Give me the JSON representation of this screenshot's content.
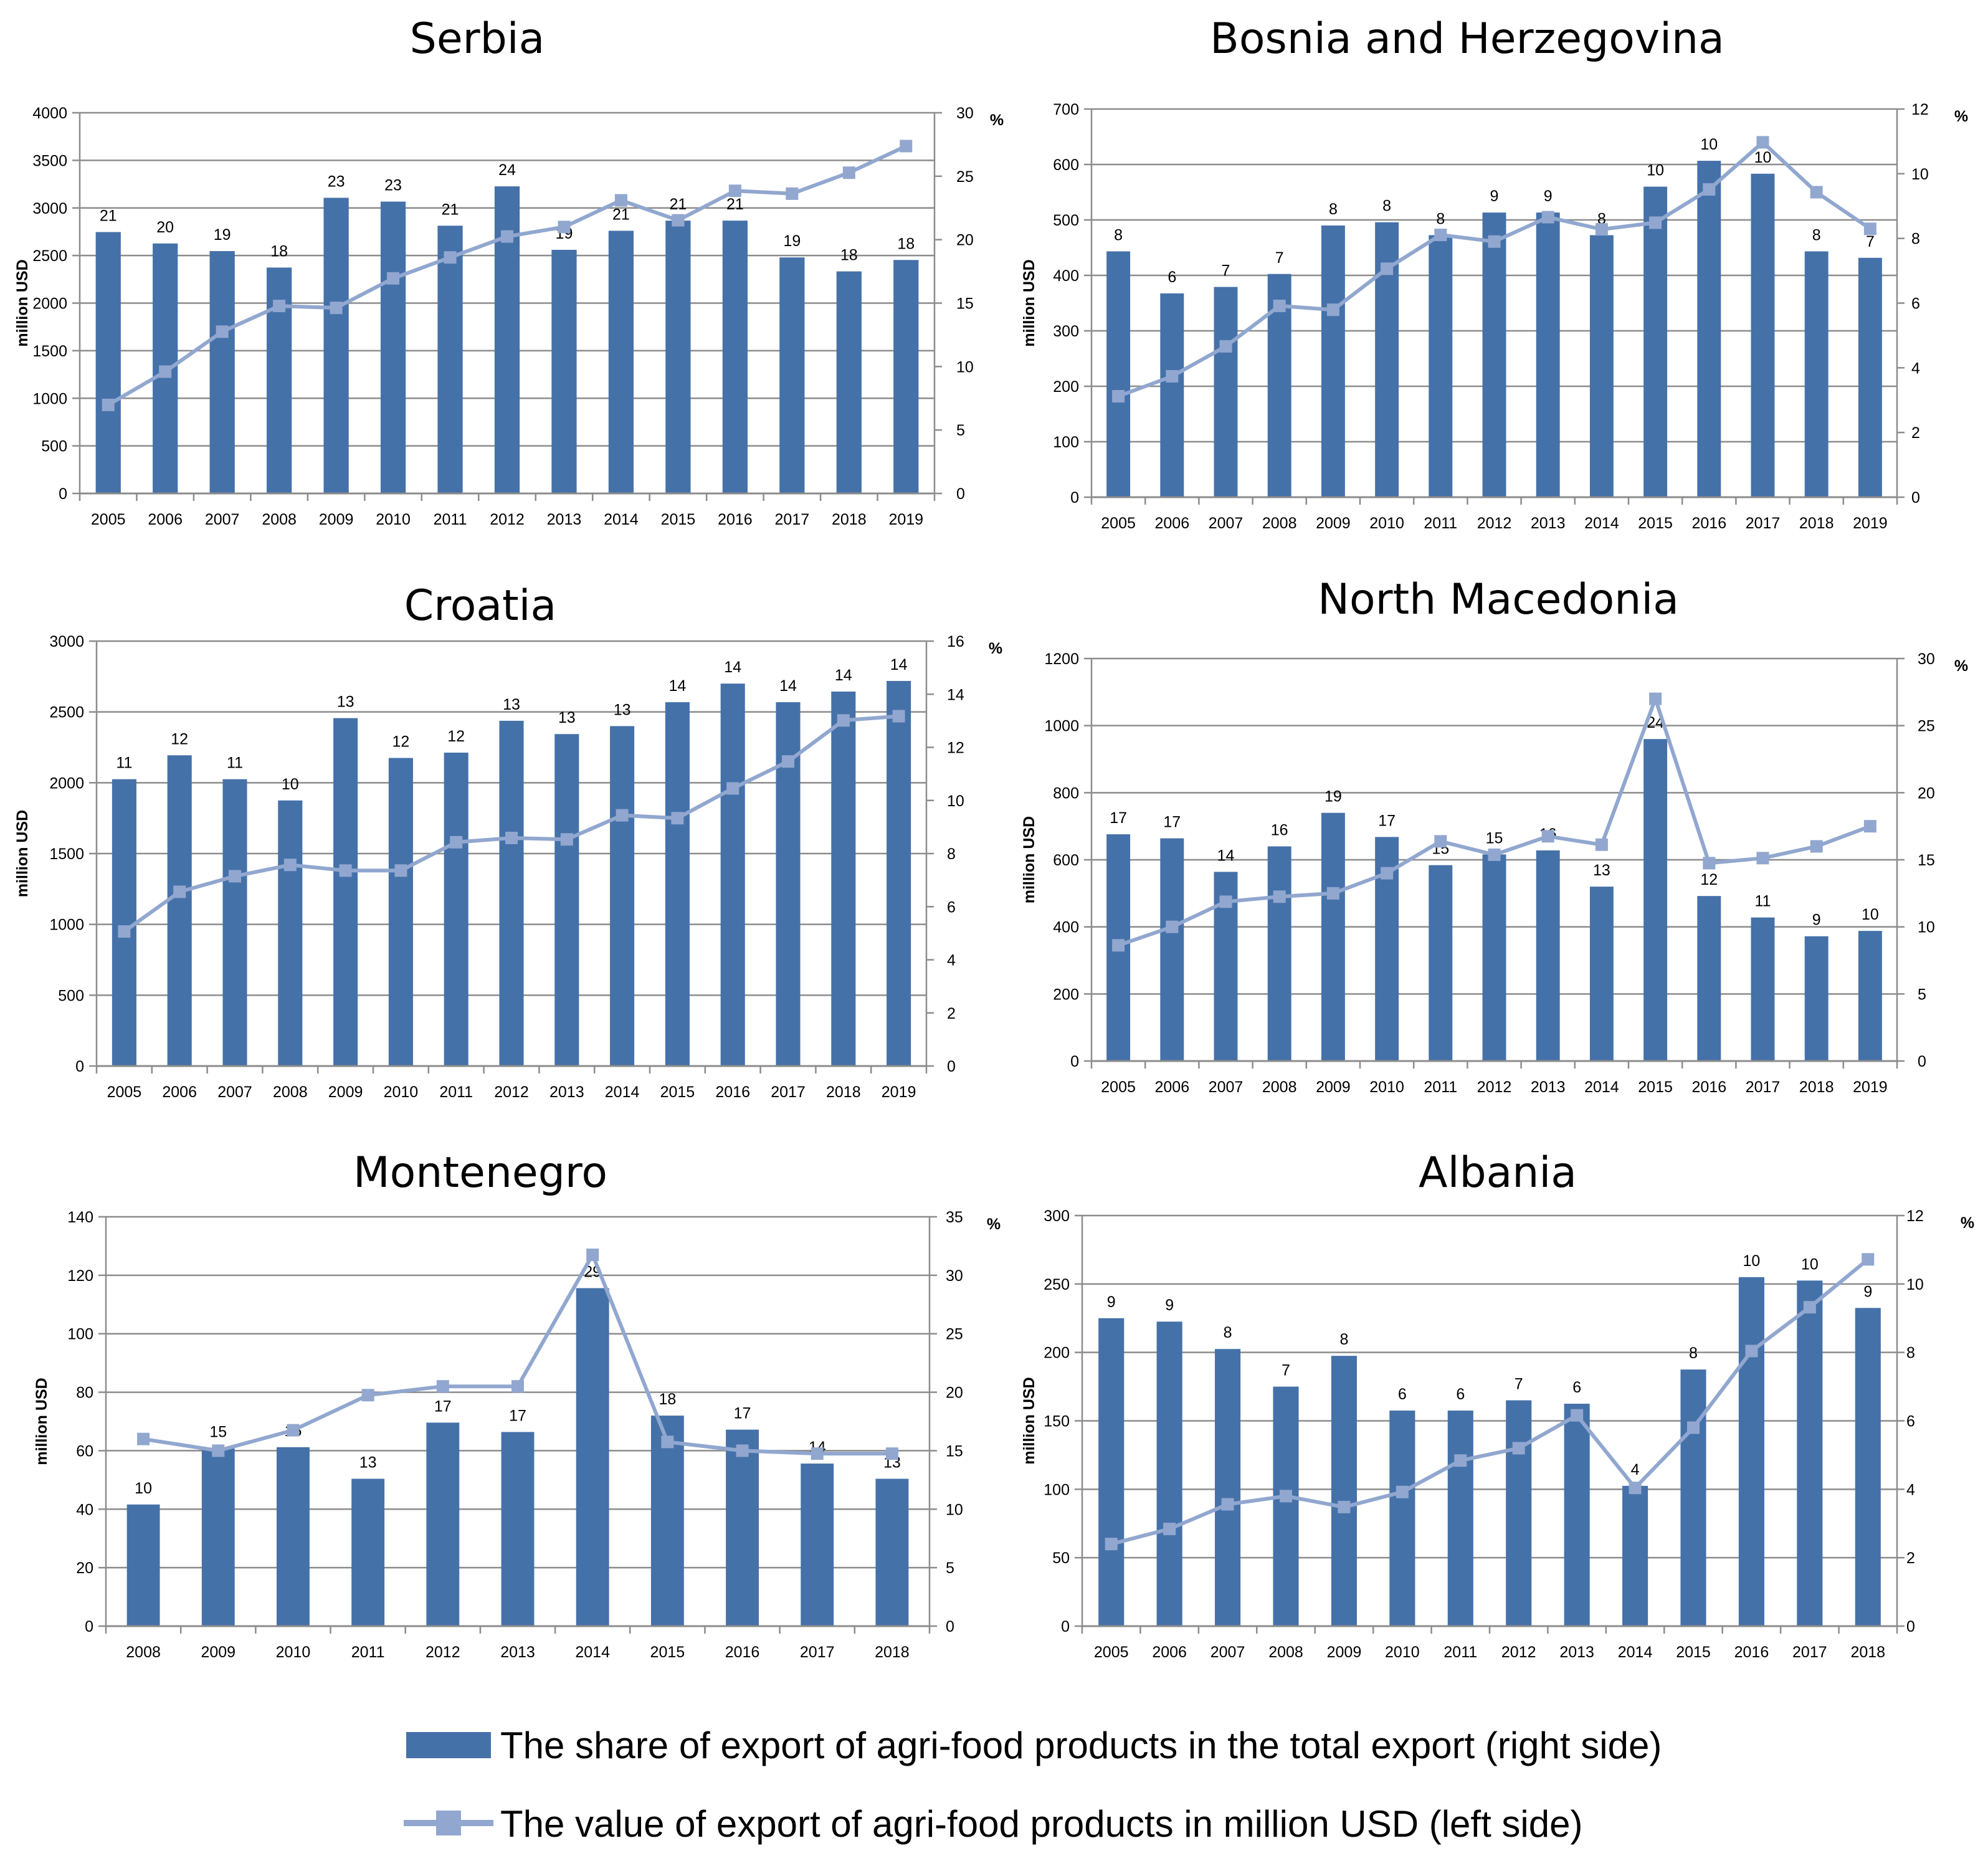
{
  "colors": {
    "bar": "#4571a9",
    "line": "#91a7cf",
    "grid": "#8c8c8c",
    "axis": "#8c8c8c"
  },
  "legend": {
    "bar_label": "The share of export of agri-food products in the total export (right side)",
    "line_label": "The value of export of agri-food products in million USD (left side)"
  },
  "chart_data": [
    {
      "type": "bar",
      "title": "Serbia",
      "ylabel": "million USD",
      "y2label": "%",
      "categories": [
        "2005",
        "2006",
        "2007",
        "2008",
        "2009",
        "2010",
        "2011",
        "2012",
        "2013",
        "2014",
        "2015",
        "2016",
        "2017",
        "2018",
        "2019"
      ],
      "ylim": [
        0,
        4000
      ],
      "yticks": [
        0,
        500,
        1000,
        1500,
        2000,
        2500,
        3000,
        3500,
        4000
      ],
      "y2lim": [
        0,
        30
      ],
      "y2ticks": [
        0,
        5,
        10,
        15,
        20,
        25,
        30
      ],
      "series": [
        {
          "name": "The share of export of agri-food products in the total export (right side)",
          "type": "bar",
          "axis": "right",
          "values": [
            20.6,
            19.7,
            19.1,
            17.8,
            23.3,
            23.0,
            21.1,
            24.2,
            19.2,
            20.7,
            21.5,
            21.5,
            18.6,
            17.5,
            18.4
          ],
          "labels": [
            "21",
            "20",
            "19",
            "18",
            "23",
            "23",
            "21",
            "24",
            "19",
            "21",
            "21",
            "21",
            "19",
            "18",
            "18"
          ]
        },
        {
          "name": "The value of export of agri-food products in million USD (left side)",
          "type": "line",
          "axis": "left",
          "values": [
            930,
            1280,
            1700,
            1970,
            1950,
            2260,
            2480,
            2700,
            2800,
            3080,
            2870,
            3180,
            3150,
            3370,
            3650
          ]
        }
      ]
    },
    {
      "type": "bar",
      "title": "Bosnia and Herzegovina",
      "ylabel": "million USD",
      "y2label": "%",
      "categories": [
        "2005",
        "2006",
        "2007",
        "2008",
        "2009",
        "2010",
        "2011",
        "2012",
        "2013",
        "2014",
        "2015",
        "2016",
        "2017",
        "2018",
        "2019"
      ],
      "ylim": [
        0,
        700
      ],
      "yticks": [
        0,
        100,
        200,
        300,
        400,
        500,
        600,
        700
      ],
      "y2lim": [
        0,
        12
      ],
      "y2ticks": [
        0,
        2,
        4,
        6,
        8,
        10,
        12
      ],
      "series": [
        {
          "name": "The share of export of agri-food products in the total export (right side)",
          "type": "bar",
          "axis": "right",
          "values": [
            7.6,
            6.3,
            6.5,
            6.9,
            8.4,
            8.5,
            8.1,
            8.8,
            8.8,
            8.1,
            9.6,
            10.4,
            10.0,
            7.6,
            7.4
          ],
          "labels": [
            "8",
            "6",
            "7",
            "7",
            "8",
            "8",
            "8",
            "9",
            "9",
            "8",
            "10",
            "10",
            "10",
            "8",
            "7"
          ]
        },
        {
          "name": "The value of export of agri-food products in million USD (left side)",
          "type": "line",
          "axis": "left",
          "values": [
            182,
            218,
            272,
            345,
            338,
            412,
            473,
            461,
            505,
            483,
            495,
            555,
            640,
            550,
            484
          ]
        }
      ]
    },
    {
      "type": "bar",
      "title": "Croatia",
      "ylabel": "million USD",
      "y2label": "%",
      "categories": [
        "2005",
        "2006",
        "2007",
        "2008",
        "2009",
        "2010",
        "2011",
        "2012",
        "2013",
        "2014",
        "2015",
        "2016",
        "2017",
        "2018",
        "2019"
      ],
      "ylim": [
        0,
        3000
      ],
      "yticks": [
        0,
        500,
        1000,
        1500,
        2000,
        2500,
        3000
      ],
      "y2lim": [
        0,
        16
      ],
      "y2ticks": [
        0,
        2,
        4,
        6,
        8,
        10,
        12,
        14,
        16
      ],
      "series": [
        {
          "name": "The share of export of agri-food products in the total export (right side)",
          "type": "bar",
          "axis": "right",
          "values": [
            10.8,
            11.7,
            10.8,
            10.0,
            13.1,
            11.6,
            11.8,
            13.0,
            12.5,
            12.8,
            13.7,
            14.4,
            13.7,
            14.1,
            14.5
          ],
          "labels": [
            "11",
            "12",
            "11",
            "10",
            "13",
            "12",
            "12",
            "13",
            "13",
            "13",
            "14",
            "14",
            "14",
            "14",
            "14"
          ]
        },
        {
          "name": "The value of export of agri-food products in million USD (left side)",
          "type": "line",
          "axis": "left",
          "values": [
            950,
            1230,
            1340,
            1420,
            1380,
            1380,
            1580,
            1610,
            1600,
            1770,
            1750,
            1960,
            2150,
            2440,
            2470
          ]
        }
      ]
    },
    {
      "type": "bar",
      "title": "North Macedonia",
      "ylabel": "million USD",
      "y2label": "%",
      "categories": [
        "2005",
        "2006",
        "2007",
        "2008",
        "2009",
        "2010",
        "2011",
        "2012",
        "2013",
        "2014",
        "2015",
        "2016",
        "2017",
        "2018",
        "2019"
      ],
      "ylim": [
        0,
        1200
      ],
      "yticks": [
        0,
        200,
        400,
        600,
        800,
        1000,
        1200
      ],
      "y2lim": [
        0,
        30
      ],
      "y2ticks": [
        0,
        5,
        10,
        15,
        20,
        25,
        30
      ],
      "series": [
        {
          "name": "The share of export of agri-food products in the total export (right side)",
          "type": "bar",
          "axis": "right",
          "values": [
            16.9,
            16.6,
            14.1,
            16.0,
            18.5,
            16.7,
            14.6,
            15.4,
            15.7,
            13.0,
            24.0,
            12.3,
            10.7,
            9.3,
            9.7
          ],
          "labels": [
            "17",
            "17",
            "14",
            "16",
            "19",
            "17",
            "15",
            "15",
            "16",
            "13",
            "24",
            "12",
            "11",
            "9",
            "10"
          ]
        },
        {
          "name": "The value of export of agri-food products in million USD (left side)",
          "type": "line",
          "axis": "left",
          "values": [
            345,
            400,
            475,
            490,
            500,
            560,
            655,
            615,
            670,
            645,
            1080,
            590,
            605,
            640,
            700
          ]
        }
      ]
    },
    {
      "type": "bar",
      "title": "Montenegro",
      "ylabel": "million USD",
      "y2label": "%",
      "categories": [
        "2008",
        "2009",
        "2010",
        "2011",
        "2012",
        "2013",
        "2014",
        "2015",
        "2016",
        "2017",
        "2018"
      ],
      "ylim": [
        0,
        140
      ],
      "yticks": [
        0,
        20,
        40,
        60,
        80,
        100,
        120,
        140
      ],
      "y2lim": [
        0,
        35
      ],
      "y2ticks": [
        0,
        5,
        10,
        15,
        20,
        25,
        30,
        35
      ],
      "series": [
        {
          "name": "The share of export of agri-food products in the total export (right side)",
          "type": "bar",
          "axis": "right",
          "values": [
            10.4,
            15.2,
            15.3,
            12.6,
            17.4,
            16.6,
            28.9,
            18.0,
            16.8,
            13.9,
            12.6
          ],
          "labels": [
            "10",
            "15",
            "15",
            "13",
            "17",
            "17",
            "29",
            "18",
            "17",
            "14",
            "13"
          ]
        },
        {
          "name": "The value of export of agri-food products in million USD (left side)",
          "type": "line",
          "axis": "left",
          "values": [
            64,
            60,
            67,
            79,
            82,
            82,
            127,
            63,
            60,
            59,
            59
          ]
        }
      ]
    },
    {
      "type": "bar",
      "title": "Albania",
      "ylabel": "million USD",
      "y2label": "%",
      "categories": [
        "2005",
        "2006",
        "2007",
        "2008",
        "2009",
        "2010",
        "2011",
        "2012",
        "2013",
        "2014",
        "2015",
        "2016",
        "2017",
        "2018"
      ],
      "ylim": [
        0,
        300
      ],
      "yticks": [
        0,
        50,
        100,
        150,
        200,
        250,
        300
      ],
      "y2lim": [
        0,
        12
      ],
      "y2ticks": [
        0,
        2,
        4,
        6,
        8,
        10,
        12
      ],
      "series": [
        {
          "name": "The share of export of agri-food products in the total export (right side)",
          "type": "bar",
          "axis": "right",
          "values": [
            9.0,
            8.9,
            8.1,
            7.0,
            7.9,
            6.3,
            6.3,
            6.6,
            6.5,
            4.1,
            7.5,
            10.2,
            10.1,
            9.3
          ],
          "labels": [
            "9",
            "9",
            "8",
            "7",
            "8",
            "6",
            "6",
            "7",
            "6",
            "4",
            "8",
            "10",
            "10",
            "9"
          ]
        },
        {
          "name": "The value of export of agri-food products in million USD (left side)",
          "type": "line",
          "axis": "left",
          "values": [
            60,
            71,
            89,
            95,
            87,
            98,
            121,
            130,
            154,
            101,
            145,
            201,
            233,
            268
          ]
        }
      ]
    }
  ]
}
